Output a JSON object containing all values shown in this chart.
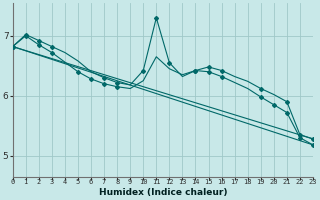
{
  "xlabel": "Humidex (Indice chaleur)",
  "background_color": "#c8e8e8",
  "grid_color": "#a0c8c8",
  "line_color": "#006868",
  "xlim": [
    0,
    23
  ],
  "ylim": [
    4.65,
    7.55
  ],
  "yticks": [
    5,
    6,
    7
  ],
  "xticks": [
    0,
    1,
    2,
    3,
    4,
    5,
    6,
    7,
    8,
    9,
    10,
    11,
    12,
    13,
    14,
    15,
    16,
    17,
    18,
    19,
    20,
    21,
    22,
    23
  ],
  "line1_x": [
    0,
    1,
    2,
    3,
    4,
    5,
    6,
    7,
    8,
    9,
    10,
    11,
    12,
    13,
    14,
    15,
    16,
    17,
    18,
    19,
    20,
    21,
    22,
    23
  ],
  "line1_y": [
    6.82,
    7.02,
    6.92,
    6.82,
    6.72,
    6.58,
    6.4,
    6.3,
    6.22,
    6.18,
    6.42,
    7.3,
    6.55,
    6.32,
    6.42,
    6.48,
    6.42,
    6.32,
    6.24,
    6.12,
    6.02,
    5.9,
    5.35,
    5.28
  ],
  "line2_x": [
    0,
    1,
    2,
    3,
    5,
    6,
    7,
    8,
    9,
    10,
    11,
    12,
    13,
    14,
    15,
    16,
    17,
    18,
    19,
    20,
    21,
    22,
    23
  ],
  "line2_y": [
    6.82,
    7.0,
    6.85,
    6.72,
    6.4,
    6.28,
    6.2,
    6.15,
    6.12,
    6.25,
    6.65,
    6.45,
    6.35,
    6.42,
    6.4,
    6.32,
    6.22,
    6.12,
    5.98,
    5.85,
    5.72,
    5.3,
    5.18
  ],
  "line3_x": [
    0,
    23
  ],
  "line3_y": [
    6.82,
    5.18
  ],
  "line4_x": [
    0,
    23
  ],
  "line4_y": [
    6.82,
    5.28
  ],
  "marker_x1": [
    0,
    1,
    2,
    3,
    7,
    8,
    10,
    11,
    12,
    14,
    15,
    16,
    19,
    21,
    22,
    23
  ],
  "marker_y1": [
    6.82,
    7.02,
    6.92,
    6.82,
    6.3,
    6.22,
    6.42,
    7.3,
    6.55,
    6.42,
    6.48,
    6.42,
    6.12,
    5.9,
    5.35,
    5.28
  ],
  "marker_x2": [
    0,
    1,
    2,
    3,
    5,
    6,
    7,
    8,
    14,
    15,
    16,
    19,
    20,
    21,
    22,
    23
  ],
  "marker_y2": [
    6.82,
    7.0,
    6.85,
    6.72,
    6.4,
    6.28,
    6.2,
    6.15,
    6.42,
    6.4,
    6.32,
    5.98,
    5.85,
    5.72,
    5.3,
    5.18
  ]
}
